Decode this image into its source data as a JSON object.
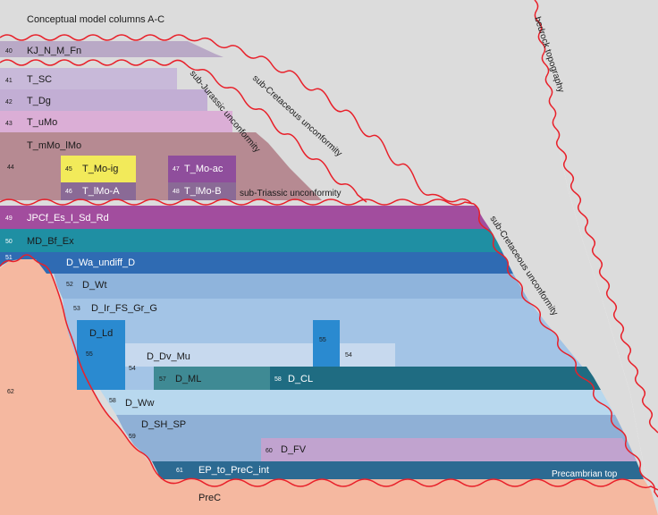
{
  "title": "Conceptual model columns A-C",
  "surfaces": {
    "bedrock_topography": "bedrock topography",
    "sub_cretaceous_upper": "sub-Cretaceous unconformity",
    "sub_jurassic": "sub-Jurassic unconformity",
    "sub_triassic": "sub-Triassic unconformity",
    "sub_cretaceous_lower": "sub-Cretaceous unconformity",
    "precambrian_top": "Precambrian top"
  },
  "units": {
    "u40": {
      "num": "40",
      "name": "KJ_N_M_Fn"
    },
    "u41": {
      "num": "41",
      "name": "T_SC"
    },
    "u42": {
      "num": "42",
      "name": "T_Dg"
    },
    "u43": {
      "num": "43",
      "name": "T_uMo"
    },
    "u44": {
      "num": "44",
      "name": "T_mMo_lMo"
    },
    "u45": {
      "num": "45",
      "name": "T_Mo-ig"
    },
    "u46": {
      "num": "46",
      "name": "T_lMo-A"
    },
    "u47": {
      "num": "47",
      "name": "T_Mo-ac"
    },
    "u48": {
      "num": "48",
      "name": "T_lMo-B"
    },
    "u49": {
      "num": "49",
      "name": "JPCf_Es_I_Sd_Rd"
    },
    "u50": {
      "num": "50",
      "name": "MD_Bf_Ex"
    },
    "u51": {
      "num": "51",
      "name": "D_Wa_undiff_D"
    },
    "u52": {
      "num": "52",
      "name": "D_Wt"
    },
    "u53": {
      "num": "53",
      "name": "D_Ir_FS_Gr_G"
    },
    "u54a": {
      "num": "54",
      "name": "D_Dv_Mu"
    },
    "u54b": {
      "num": "54"
    },
    "u55a": {
      "num": "55",
      "name": "D_Ld"
    },
    "u55b": {
      "num": "55"
    },
    "u57": {
      "num": "57",
      "name": "D_ML"
    },
    "u58a": {
      "num": "58",
      "name": "D_CL"
    },
    "u58b": {
      "num": "58",
      "name": "D_Ww"
    },
    "u59": {
      "num": "59",
      "name": "D_SH_SP"
    },
    "u60": {
      "num": "60",
      "name": "D_FV"
    },
    "u61": {
      "num": "61",
      "name": "EP_to_PreC_int"
    },
    "u62": {
      "num": "62"
    }
  },
  "basement": "PreC",
  "colors": {
    "background": "#ffffff",
    "bedrock_fill": "#dcdcdc",
    "unconformity_line": "#e8202a",
    "precambrian": "#f5b8a0",
    "u40": "#b9a9c6",
    "u41": "#c8b9d9",
    "u42": "#c2aed4",
    "u43": "#dbaed6",
    "u44": "#b68a92",
    "u45": "#f2ea5a",
    "u46": "#8a6a96",
    "u47": "#8f4e9c",
    "u48": "#8a6a96",
    "u49": "#a24d9e",
    "u50": "#1f8fa3",
    "u51": "#2f6bb3",
    "u52": "#8fb4dc",
    "u53": "#a3c4e6",
    "u54": "#c7d9ee",
    "u55": "#2a8ad0",
    "u57": "#3f8a94",
    "u58": "#1f6c82",
    "u58b": "#b8d8ee",
    "u59": "#8fb0d6",
    "u60": "#c1a3cf",
    "u61": "#2c6a92"
  }
}
